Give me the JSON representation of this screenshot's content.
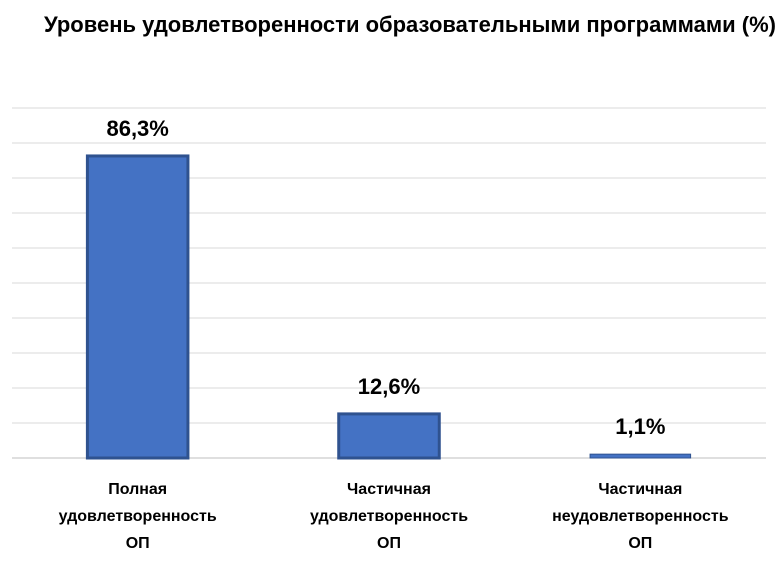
{
  "chart_data": {
    "type": "bar",
    "title": "Уровень удовлетворенности образовательными программами (%)",
    "categories": [
      [
        "Полная",
        "удовлетворенность",
        "ОП"
      ],
      [
        "Частичная",
        "удовлетворенность",
        "ОП"
      ],
      [
        "Частичная",
        "неудовлетворенность",
        "ОП"
      ]
    ],
    "values": [
      86.3,
      12.6,
      1.1
    ],
    "data_labels": [
      "86,3%",
      "12,6%",
      "1,1%"
    ],
    "ylim": [
      0,
      100
    ],
    "grid": true,
    "legend": "none",
    "colors": {
      "bar": "#4472c4",
      "bar_edge": "#2f528f",
      "grid": "#d9d9d9"
    }
  }
}
